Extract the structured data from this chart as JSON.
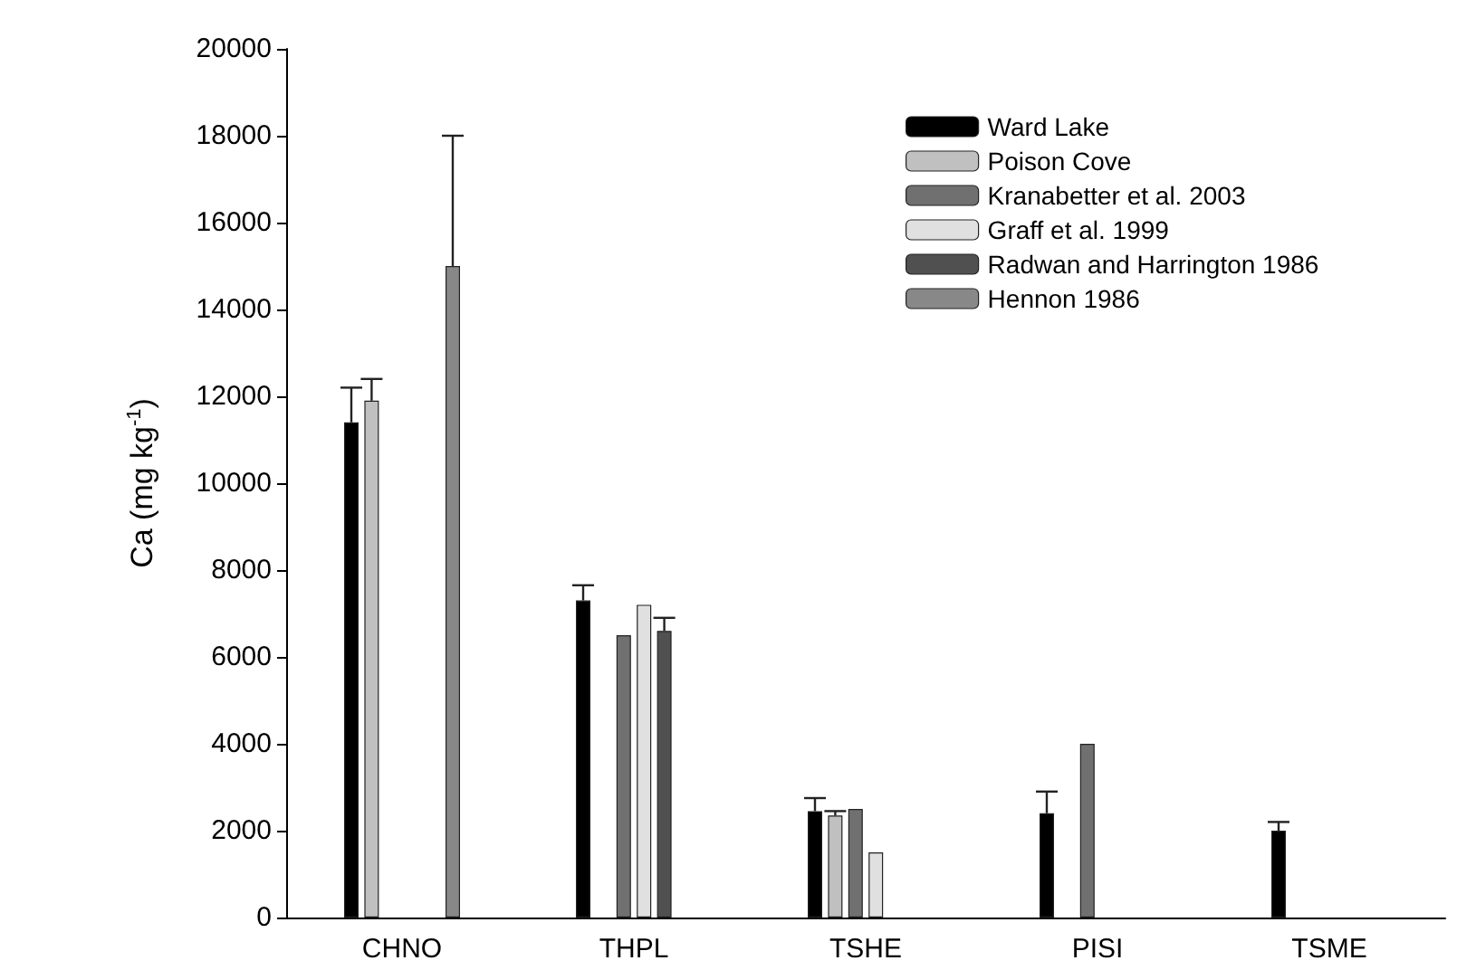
{
  "chart_data": {
    "type": "bar",
    "ylabel": "Ca (mg kg$^{-1}$)",
    "categories": [
      "CHNO",
      "THPL",
      "TSHE",
      "PISI",
      "TSME"
    ],
    "series": [
      {
        "name": "Ward Lake",
        "color": "#000000",
        "values": [
          11400,
          7300,
          2450,
          2400,
          2000
        ],
        "errors": [
          [
            11400,
            12200
          ],
          [
            7300,
            7650
          ],
          [
            2450,
            2750
          ],
          [
            2400,
            2900
          ],
          [
            2000,
            2200
          ]
        ]
      },
      {
        "name": "Poison Cove",
        "color": "#c0c0c0",
        "values": [
          11900,
          null,
          2350,
          null,
          null
        ],
        "errors": [
          [
            11900,
            12400
          ],
          null,
          [
            2350,
            2450
          ],
          null,
          null
        ]
      },
      {
        "name": "Kranabetter et al. 2003",
        "color": "#707070",
        "values": [
          null,
          6500,
          2500,
          4000,
          null
        ]
      },
      {
        "name": "Graff et al. 1999",
        "color": "#e0e0e0",
        "values": [
          null,
          7200,
          1500,
          null,
          null
        ]
      },
      {
        "name": "Radwan and Harrington 1986",
        "color": "#505050",
        "values": [
          null,
          6600,
          null,
          null,
          null
        ],
        "errors": [
          null,
          [
            6600,
            6900
          ],
          null,
          null,
          null
        ]
      },
      {
        "name": "Hennon 1986",
        "color": "#888888",
        "values": [
          15000,
          null,
          null,
          null,
          null
        ],
        "errors": [
          [
            15000,
            18000
          ],
          null,
          null,
          null,
          null
        ]
      }
    ],
    "ylim": [
      0,
      20000
    ],
    "yticks": [
      0,
      2000,
      4000,
      6000,
      8000,
      10000,
      12000,
      14000,
      16000,
      18000,
      20000
    ],
    "grid": false,
    "legend": "top right"
  }
}
